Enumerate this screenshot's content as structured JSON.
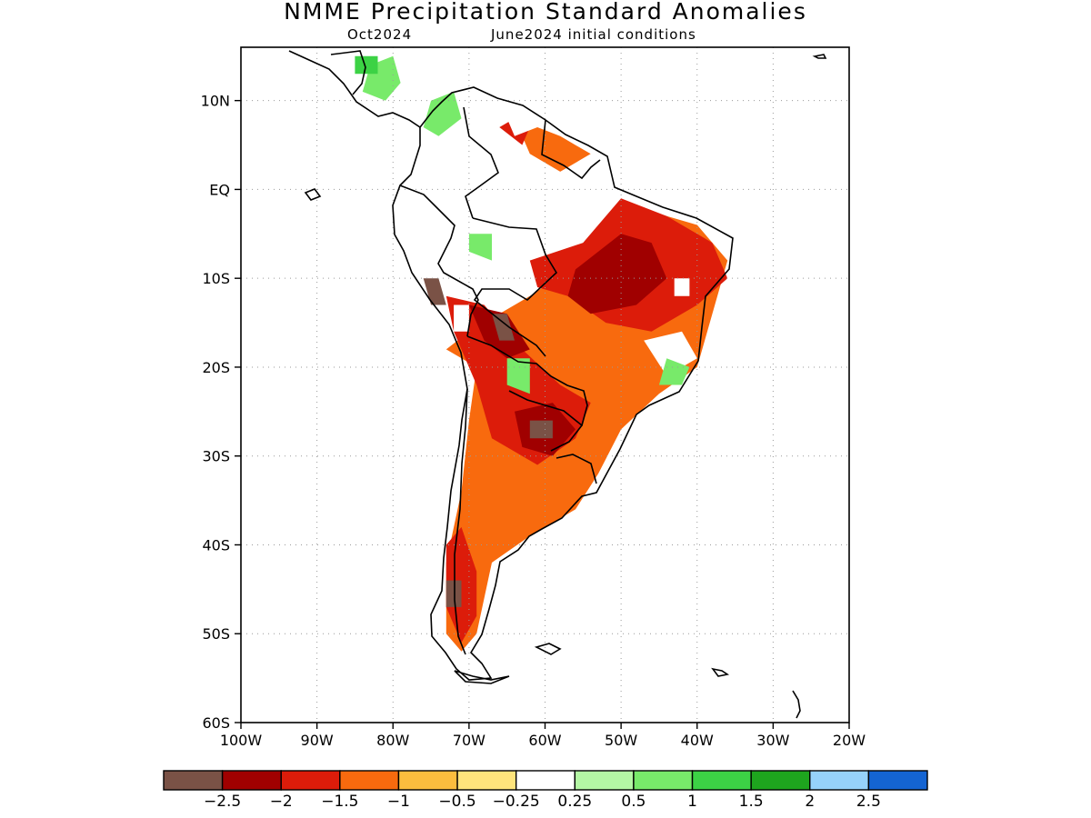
{
  "title": "NMME Precipitation Standard Anomalies",
  "subtitle_left": "Oct2024",
  "subtitle_right": "June2024 initial conditions",
  "axes": {
    "lon_range": [
      -100,
      -20
    ],
    "lat_range": [
      -60,
      16
    ],
    "lat_ticks": [
      {
        "value": 10,
        "label": "10N"
      },
      {
        "value": 0,
        "label": "EQ"
      },
      {
        "value": -10,
        "label": "10S"
      },
      {
        "value": -20,
        "label": "20S"
      },
      {
        "value": -30,
        "label": "30S"
      },
      {
        "value": -40,
        "label": "40S"
      },
      {
        "value": -50,
        "label": "50S"
      },
      {
        "value": -60,
        "label": "60S"
      }
    ],
    "lon_ticks": [
      {
        "value": -100,
        "label": "100W"
      },
      {
        "value": -90,
        "label": "90W"
      },
      {
        "value": -80,
        "label": "80W"
      },
      {
        "value": -70,
        "label": "70W"
      },
      {
        "value": -60,
        "label": "60W"
      },
      {
        "value": -50,
        "label": "50W"
      },
      {
        "value": -40,
        "label": "40W"
      },
      {
        "value": -30,
        "label": "30W"
      },
      {
        "value": -20,
        "label": "20W"
      }
    ],
    "grid": true
  },
  "colorbar": {
    "colors": [
      "#7a5246",
      "#a00000",
      "#dc1c0a",
      "#f86a0e",
      "#fbbd3e",
      "#ffe47c",
      "#ffffff",
      "#b4f7a4",
      "#78ea6a",
      "#3cd245",
      "#1ea51e",
      "#96d2fa",
      "#1464d2"
    ],
    "labels": [
      "−2.5",
      "−2",
      "−1.5",
      "−1",
      "−0.5",
      "−0.25",
      "0.25",
      "0.5",
      "1",
      "1.5",
      "2",
      "2.5"
    ]
  },
  "anomaly_regions": [
    {
      "category": "below -1",
      "color": "#f86a0e",
      "lonlat": [
        [
          -73,
          -18
        ],
        [
          -70,
          -16
        ],
        [
          -62,
          -12
        ],
        [
          -55,
          -8
        ],
        [
          -48,
          -2
        ],
        [
          -40,
          -4
        ],
        [
          -36,
          -8
        ],
        [
          -38,
          -14
        ],
        [
          -40,
          -20
        ],
        [
          -45,
          -23
        ],
        [
          -50,
          -27
        ],
        [
          -53,
          -32
        ],
        [
          -56,
          -36
        ],
        [
          -62,
          -39
        ],
        [
          -67,
          -42
        ],
        [
          -69,
          -50
        ],
        [
          -71,
          -52
        ],
        [
          -73,
          -50
        ],
        [
          -73,
          -42
        ],
        [
          -71,
          -34
        ],
        [
          -70,
          -26
        ],
        [
          -69,
          -20
        ]
      ]
    },
    {
      "category": "below -1",
      "color": "#f86a0e",
      "lonlat": [
        [
          -64,
          8
        ],
        [
          -58,
          6
        ],
        [
          -54,
          4
        ],
        [
          -58,
          2
        ],
        [
          -62,
          4
        ]
      ]
    },
    {
      "category": "below -1.5",
      "color": "#dc1c0a",
      "lonlat": [
        [
          -62,
          -8
        ],
        [
          -55,
          -6
        ],
        [
          -50,
          -1
        ],
        [
          -44,
          -3
        ],
        [
          -38,
          -6
        ],
        [
          -36,
          -10
        ],
        [
          -40,
          -13
        ],
        [
          -46,
          -16
        ],
        [
          -52,
          -15
        ],
        [
          -57,
          -12
        ],
        [
          -61,
          -11
        ]
      ]
    },
    {
      "category": "below -1.5",
      "color": "#dc1c0a",
      "lonlat": [
        [
          -73,
          -12
        ],
        [
          -68,
          -13
        ],
        [
          -63,
          -18
        ],
        [
          -58,
          -22
        ],
        [
          -54,
          -24
        ],
        [
          -56,
          -28
        ],
        [
          -61,
          -31
        ],
        [
          -67,
          -28
        ],
        [
          -69,
          -22
        ],
        [
          -72,
          -16
        ]
      ]
    },
    {
      "category": "below -1.5",
      "color": "#dc1c0a",
      "lonlat": [
        [
          -71,
          -38
        ],
        [
          -69,
          -43
        ],
        [
          -69,
          -48
        ],
        [
          -71,
          -51
        ],
        [
          -73,
          -47
        ],
        [
          -73,
          -40
        ]
      ]
    },
    {
      "category": "below -1.5",
      "color": "#dc1c0a",
      "lonlat": [
        [
          -66,
          7
        ],
        [
          -63,
          5
        ],
        [
          -62,
          7
        ],
        [
          -64,
          8
        ]
      ]
    },
    {
      "category": "below -2",
      "color": "#a00000",
      "lonlat": [
        [
          -56,
          -9
        ],
        [
          -50,
          -5
        ],
        [
          -46,
          -6
        ],
        [
          -44,
          -10
        ],
        [
          -48,
          -13
        ],
        [
          -54,
          -14
        ],
        [
          -57,
          -12
        ]
      ]
    },
    {
      "category": "below -2",
      "color": "#a00000",
      "lonlat": [
        [
          -70,
          -13
        ],
        [
          -65,
          -14
        ],
        [
          -62,
          -18
        ],
        [
          -65,
          -19
        ],
        [
          -68,
          -17
        ]
      ]
    },
    {
      "category": "below -2",
      "color": "#a00000",
      "lonlat": [
        [
          -64,
          -25
        ],
        [
          -59,
          -24
        ],
        [
          -56,
          -27
        ],
        [
          -59,
          -30
        ],
        [
          -63,
          -29
        ]
      ]
    },
    {
      "category": "below -2.5",
      "color": "#7a5246",
      "lonlat": [
        [
          -76,
          -10
        ],
        [
          -74,
          -10
        ],
        [
          -73,
          -13
        ],
        [
          -75,
          -13
        ]
      ]
    },
    {
      "category": "below -2.5",
      "color": "#7a5246",
      "lonlat": [
        [
          -67,
          -14
        ],
        [
          -65,
          -14
        ],
        [
          -64,
          -17
        ],
        [
          -66,
          -17
        ]
      ]
    },
    {
      "category": "below -2.5",
      "color": "#7a5246",
      "lonlat": [
        [
          -62,
          -26
        ],
        [
          -59,
          -26
        ],
        [
          -59,
          -28
        ],
        [
          -62,
          -28
        ]
      ]
    },
    {
      "category": "below -2.5",
      "color": "#7a5246",
      "lonlat": [
        [
          -73,
          -44
        ],
        [
          -71,
          -44
        ],
        [
          -71,
          -47
        ],
        [
          -73,
          -47
        ]
      ]
    },
    {
      "category": "near normal",
      "color": "#ffffff",
      "lonlat": [
        [
          -72,
          -1
        ],
        [
          -68,
          -1
        ],
        [
          -66,
          -4
        ],
        [
          -70,
          -5
        ]
      ]
    },
    {
      "category": "near normal",
      "color": "#ffffff",
      "lonlat": [
        [
          -65,
          8
        ],
        [
          -62,
          9
        ],
        [
          -61,
          7
        ],
        [
          -64,
          6
        ]
      ]
    },
    {
      "category": "near normal",
      "color": "#ffffff",
      "lonlat": [
        [
          -47,
          -17
        ],
        [
          -42,
          -16
        ],
        [
          -40,
          -19
        ],
        [
          -44,
          -21
        ]
      ]
    },
    {
      "category": "near normal",
      "color": "#ffffff",
      "lonlat": [
        [
          -43,
          -10
        ],
        [
          -41,
          -10
        ],
        [
          -41,
          -12
        ],
        [
          -43,
          -12
        ]
      ]
    },
    {
      "category": "near normal",
      "color": "#ffffff",
      "lonlat": [
        [
          -72,
          -13
        ],
        [
          -70,
          -13
        ],
        [
          -70,
          -16
        ],
        [
          -72,
          -16
        ]
      ]
    },
    {
      "category": "above 0.5",
      "color": "#78ea6a",
      "lonlat": [
        [
          -83,
          14
        ],
        [
          -80,
          15
        ],
        [
          -79,
          12
        ],
        [
          -81,
          10
        ],
        [
          -84,
          11
        ]
      ]
    },
    {
      "category": "above 0.5",
      "color": "#78ea6a",
      "lonlat": [
        [
          -75,
          10
        ],
        [
          -72,
          11
        ],
        [
          -71,
          8
        ],
        [
          -74,
          6
        ],
        [
          -76,
          7
        ]
      ]
    },
    {
      "category": "above 0.5",
      "color": "#78ea6a",
      "lonlat": [
        [
          -70,
          -5
        ],
        [
          -67,
          -5
        ],
        [
          -67,
          -8
        ],
        [
          -70,
          -7
        ]
      ]
    },
    {
      "category": "above 0.5",
      "color": "#78ea6a",
      "lonlat": [
        [
          -65,
          -19
        ],
        [
          -62,
          -19
        ],
        [
          -62,
          -23
        ],
        [
          -65,
          -22
        ]
      ]
    },
    {
      "category": "above 0.5",
      "color": "#78ea6a",
      "lonlat": [
        [
          -44,
          -19
        ],
        [
          -41,
          -20
        ],
        [
          -42,
          -22
        ],
        [
          -45,
          -22
        ]
      ]
    },
    {
      "category": "above 1",
      "color": "#3cd245",
      "lonlat": [
        [
          -85,
          15
        ],
        [
          -82,
          15
        ],
        [
          -82,
          13
        ],
        [
          -85,
          13
        ]
      ]
    }
  ]
}
